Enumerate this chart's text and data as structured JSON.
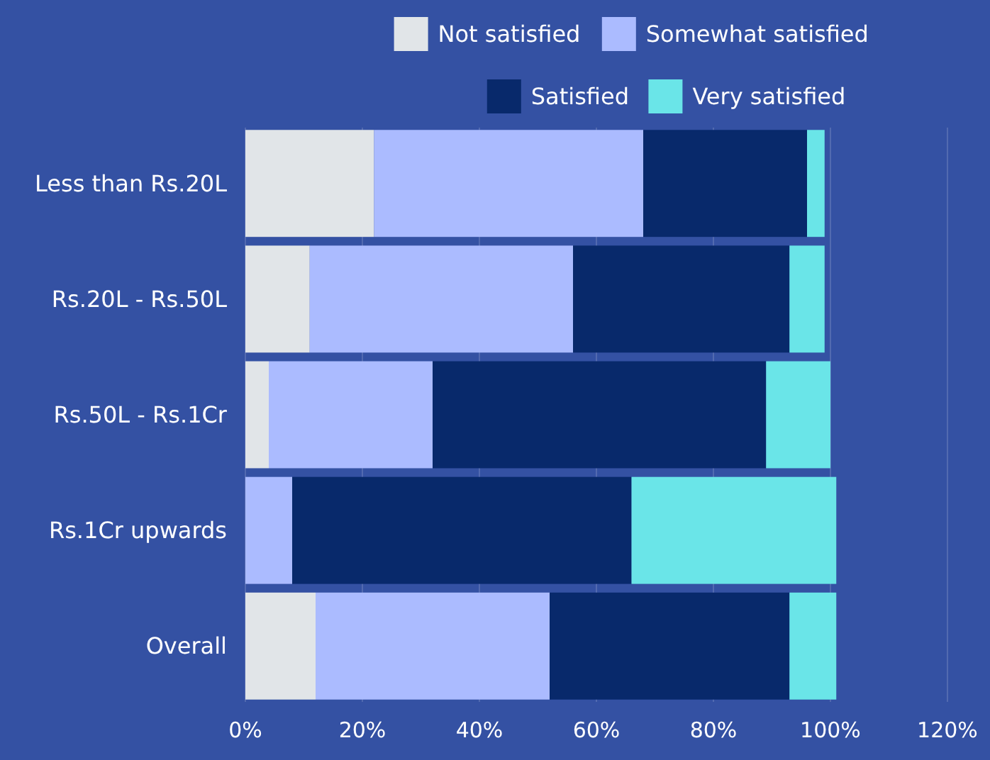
{
  "chart_data": {
    "type": "bar",
    "orientation": "horizontal",
    "stacked": true,
    "categories": [
      "Less than Rs.20L",
      "Rs.20L - Rs.50L",
      "Rs.50L - Rs.1Cr",
      "Rs.1Cr upwards",
      "Overall"
    ],
    "series": [
      {
        "name": "Not satisfied",
        "color": "#e1e5e8",
        "values": [
          22,
          11,
          4,
          0,
          12
        ]
      },
      {
        "name": "Somewhat satisfied",
        "color": "#abbbff",
        "values": [
          46,
          45,
          28,
          8,
          40
        ]
      },
      {
        "name": "Satisfied",
        "color": "#08296b",
        "values": [
          28,
          37,
          57,
          58,
          41
        ]
      },
      {
        "name": "Very satisfied",
        "color": "#6ae5e8",
        "values": [
          3,
          6,
          11,
          35,
          8
        ]
      }
    ],
    "xlim": [
      0,
      120
    ],
    "xticks": [
      {
        "value": 0,
        "label": "0%"
      },
      {
        "value": 20,
        "label": "20%"
      },
      {
        "value": 40,
        "label": "40%"
      },
      {
        "value": 60,
        "label": "60%"
      },
      {
        "value": 80,
        "label": "80%"
      },
      {
        "value": 100,
        "label": "100%"
      },
      {
        "value": 120,
        "label": "120%"
      }
    ],
    "grid": "x",
    "legend": "top right"
  }
}
